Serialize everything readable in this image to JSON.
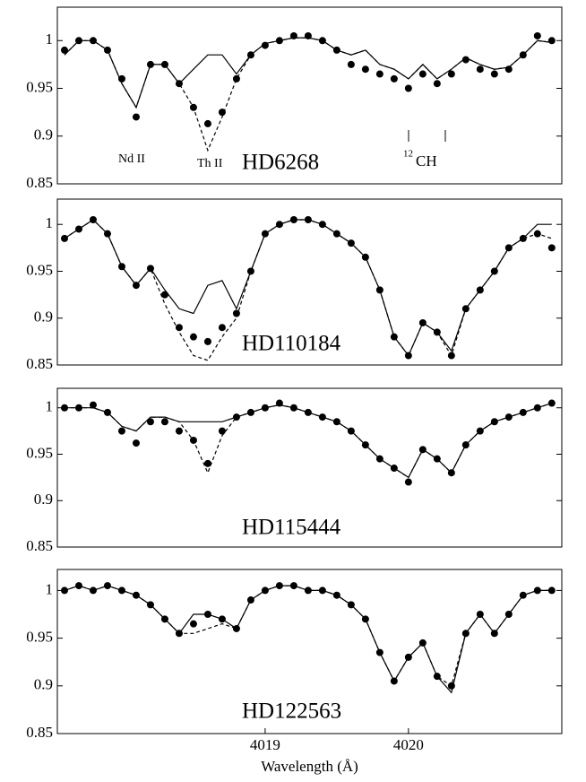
{
  "chart_data": [
    {
      "type": "line",
      "label": "HD6268",
      "annotations": [
        "Nd II",
        "Th II",
        "12",
        "CH"
      ],
      "xlim": [
        4017.55,
        4021.07
      ],
      "ylim": [
        0.85,
        1.035
      ],
      "yticks": [
        0.85,
        0.9,
        0.95,
        1
      ],
      "x": [
        4017.6,
        4017.7,
        4017.8,
        4017.9,
        4018.0,
        4018.1,
        4018.2,
        4018.3,
        4018.4,
        4018.5,
        4018.6,
        4018.7,
        4018.8,
        4018.9,
        4019.0,
        4019.1,
        4019.2,
        4019.3,
        4019.4,
        4019.5,
        4019.6,
        4019.7,
        4019.8,
        4019.9,
        4020.0,
        4020.1,
        4020.2,
        4020.3,
        4020.4,
        4020.5,
        4020.6,
        4020.7,
        4020.8,
        4020.9,
        4021.0
      ],
      "series": [
        {
          "style": "dots",
          "color": "#000000",
          "values": [
            0.99,
            1.0,
            1.0,
            0.99,
            0.96,
            0.92,
            0.975,
            0.975,
            0.955,
            0.93,
            0.913,
            0.925,
            0.96,
            0.985,
            0.995,
            1.0,
            1.005,
            1.005,
            1.0,
            0.99,
            0.975,
            0.97,
            0.965,
            0.96,
            0.95,
            0.965,
            0.955,
            0.965,
            0.98,
            0.97,
            0.965,
            0.97,
            0.985,
            1.005,
            1.0
          ]
        },
        {
          "style": "solid",
          "color": "#000000",
          "values": [
            0.985,
            1.0,
            1.0,
            0.99,
            0.955,
            0.93,
            0.975,
            0.975,
            0.955,
            0.97,
            0.985,
            0.985,
            0.965,
            0.985,
            0.997,
            1.0,
            1.003,
            1.003,
            1.0,
            0.99,
            0.985,
            0.99,
            0.975,
            0.97,
            0.96,
            0.975,
            0.96,
            0.97,
            0.982,
            0.975,
            0.97,
            0.972,
            0.985,
            1.0,
            0.998
          ]
        },
        {
          "style": "dashed",
          "color": "#000000",
          "values": [
            0.985,
            1.0,
            1.0,
            0.99,
            0.955,
            0.93,
            0.975,
            0.975,
            0.955,
            0.93,
            0.885,
            0.92,
            0.96,
            0.985,
            0.997,
            1.0,
            1.003,
            1.003,
            1.0,
            0.99,
            0.985,
            0.99,
            0.975,
            0.97,
            0.96,
            0.975,
            0.96,
            0.97,
            0.982,
            0.975,
            0.97,
            0.972,
            0.985,
            1.0,
            0.998
          ]
        }
      ]
    },
    {
      "type": "line",
      "label": "HD110184",
      "xlim": [
        4017.55,
        4021.07
      ],
      "ylim": [
        0.85,
        1.027
      ],
      "yticks": [
        0.85,
        0.9,
        0.95,
        1
      ],
      "x": [
        4017.6,
        4017.7,
        4017.8,
        4017.9,
        4018.0,
        4018.1,
        4018.2,
        4018.3,
        4018.4,
        4018.5,
        4018.6,
        4018.7,
        4018.8,
        4018.9,
        4019.0,
        4019.1,
        4019.2,
        4019.3,
        4019.4,
        4019.5,
        4019.6,
        4019.7,
        4019.8,
        4019.9,
        4020.0,
        4020.1,
        4020.2,
        4020.3,
        4020.4,
        4020.5,
        4020.6,
        4020.7,
        4020.8,
        4020.9,
        4021.0
      ],
      "series": [
        {
          "style": "dots",
          "color": "#000000",
          "values": [
            0.985,
            0.995,
            1.005,
            0.99,
            0.955,
            0.935,
            0.953,
            0.925,
            0.89,
            0.88,
            0.875,
            0.89,
            0.905,
            0.95,
            0.99,
            1.0,
            1.005,
            1.005,
            1.0,
            0.99,
            0.98,
            0.965,
            0.93,
            0.88,
            0.86,
            0.895,
            0.885,
            0.86,
            0.91,
            0.93,
            0.95,
            0.975,
            0.985,
            0.99,
            0.975
          ]
        },
        {
          "style": "solid",
          "color": "#000000",
          "values": [
            0.985,
            0.995,
            1.005,
            0.99,
            0.955,
            0.935,
            0.953,
            0.93,
            0.91,
            0.905,
            0.935,
            0.94,
            0.91,
            0.95,
            0.99,
            1.0,
            1.005,
            1.005,
            1.0,
            0.99,
            0.98,
            0.965,
            0.93,
            0.88,
            0.86,
            0.895,
            0.885,
            0.865,
            0.91,
            0.93,
            0.95,
            0.975,
            0.985,
            1.0,
            1.0
          ]
        },
        {
          "style": "dashed",
          "color": "#000000",
          "values": [
            0.985,
            0.995,
            1.005,
            0.99,
            0.955,
            0.935,
            0.953,
            0.915,
            0.885,
            0.86,
            0.855,
            0.88,
            0.9,
            0.95,
            0.99,
            1.0,
            1.005,
            1.005,
            1.0,
            0.99,
            0.98,
            0.965,
            0.93,
            0.88,
            0.86,
            0.895,
            0.885,
            0.86,
            0.91,
            0.93,
            0.95,
            0.975,
            0.985,
            0.99,
            0.985
          ]
        }
      ]
    },
    {
      "type": "line",
      "label": "HD115444",
      "xlim": [
        4017.55,
        4021.07
      ],
      "ylim": [
        0.85,
        1.021
      ],
      "yticks": [
        0.85,
        0.9,
        0.95,
        1
      ],
      "x": [
        4017.6,
        4017.7,
        4017.8,
        4017.9,
        4018.0,
        4018.1,
        4018.2,
        4018.3,
        4018.4,
        4018.5,
        4018.6,
        4018.7,
        4018.8,
        4018.9,
        4019.0,
        4019.1,
        4019.2,
        4019.3,
        4019.4,
        4019.5,
        4019.6,
        4019.7,
        4019.8,
        4019.9,
        4020.0,
        4020.1,
        4020.2,
        4020.3,
        4020.4,
        4020.5,
        4020.6,
        4020.7,
        4020.8,
        4020.9,
        4021.0
      ],
      "series": [
        {
          "style": "dots",
          "color": "#000000",
          "values": [
            1,
            1,
            1.003,
            0.995,
            0.975,
            0.962,
            0.985,
            0.985,
            0.975,
            0.965,
            0.94,
            0.975,
            0.99,
            0.995,
            1.0,
            1.005,
            1.0,
            0.995,
            0.99,
            0.985,
            0.975,
            0.96,
            0.945,
            0.935,
            0.92,
            0.955,
            0.945,
            0.93,
            0.96,
            0.975,
            0.985,
            0.99,
            0.995,
            1.0,
            1.005
          ]
        },
        {
          "style": "solid",
          "color": "#000000",
          "values": [
            1,
            1,
            1.0,
            0.995,
            0.98,
            0.975,
            0.99,
            0.99,
            0.985,
            0.985,
            0.985,
            0.985,
            0.99,
            0.995,
            1.0,
            1.003,
            1.0,
            0.995,
            0.99,
            0.985,
            0.975,
            0.96,
            0.945,
            0.935,
            0.925,
            0.955,
            0.945,
            0.93,
            0.96,
            0.975,
            0.985,
            0.99,
            0.995,
            1.0,
            1.005
          ]
        },
        {
          "style": "dashed",
          "color": "#000000",
          "values": [
            1,
            1,
            1.0,
            0.995,
            0.98,
            0.975,
            0.99,
            0.99,
            0.985,
            0.965,
            0.93,
            0.97,
            0.99,
            0.995,
            1.0,
            1.003,
            1.0,
            0.995,
            0.99,
            0.985,
            0.975,
            0.96,
            0.945,
            0.935,
            0.925,
            0.955,
            0.945,
            0.93,
            0.96,
            0.975,
            0.985,
            0.99,
            0.995,
            1.0,
            1.005
          ]
        }
      ]
    },
    {
      "type": "line",
      "label": "HD122563",
      "xlabel": "Wavelength (Å)",
      "xlim": [
        4017.55,
        4021.07
      ],
      "ylim": [
        0.85,
        1.022
      ],
      "yticks": [
        0.85,
        0.9,
        0.95,
        1
      ],
      "xticks": [
        4019,
        4020
      ],
      "x": [
        4017.6,
        4017.7,
        4017.8,
        4017.9,
        4018.0,
        4018.1,
        4018.2,
        4018.3,
        4018.4,
        4018.5,
        4018.6,
        4018.7,
        4018.8,
        4018.9,
        4019.0,
        4019.1,
        4019.2,
        4019.3,
        4019.4,
        4019.5,
        4019.6,
        4019.7,
        4019.8,
        4019.9,
        4020.0,
        4020.1,
        4020.2,
        4020.3,
        4020.4,
        4020.5,
        4020.6,
        4020.7,
        4020.8,
        4020.9,
        4021.0
      ],
      "series": [
        {
          "style": "dots",
          "color": "#000000",
          "values": [
            1,
            1.005,
            1.0,
            1.005,
            1.0,
            0.995,
            0.985,
            0.97,
            0.955,
            0.965,
            0.975,
            0.97,
            0.96,
            0.99,
            1.0,
            1.005,
            1.005,
            1.0,
            1.0,
            0.995,
            0.985,
            0.97,
            0.935,
            0.905,
            0.93,
            0.945,
            0.91,
            0.9,
            0.955,
            0.975,
            0.955,
            0.975,
            0.995,
            1.0,
            1.0
          ]
        },
        {
          "style": "solid",
          "color": "#000000",
          "values": [
            1,
            1.005,
            1.0,
            1.005,
            1.0,
            0.995,
            0.985,
            0.97,
            0.955,
            0.975,
            0.975,
            0.97,
            0.96,
            0.99,
            1.0,
            1.005,
            1.005,
            1.0,
            1.0,
            0.995,
            0.985,
            0.97,
            0.935,
            0.905,
            0.93,
            0.945,
            0.91,
            0.893,
            0.955,
            0.975,
            0.955,
            0.975,
            0.995,
            1.0,
            1.0
          ]
        },
        {
          "style": "dashed",
          "color": "#000000",
          "values": [
            1,
            1.005,
            1.0,
            1.005,
            1.0,
            0.995,
            0.985,
            0.97,
            0.955,
            0.955,
            0.96,
            0.965,
            0.96,
            0.99,
            1.0,
            1.005,
            1.005,
            1.0,
            1.0,
            0.995,
            0.985,
            0.97,
            0.935,
            0.905,
            0.93,
            0.945,
            0.91,
            0.9,
            0.955,
            0.975,
            0.955,
            0.975,
            0.995,
            1.0,
            1.0
          ]
        }
      ]
    }
  ]
}
